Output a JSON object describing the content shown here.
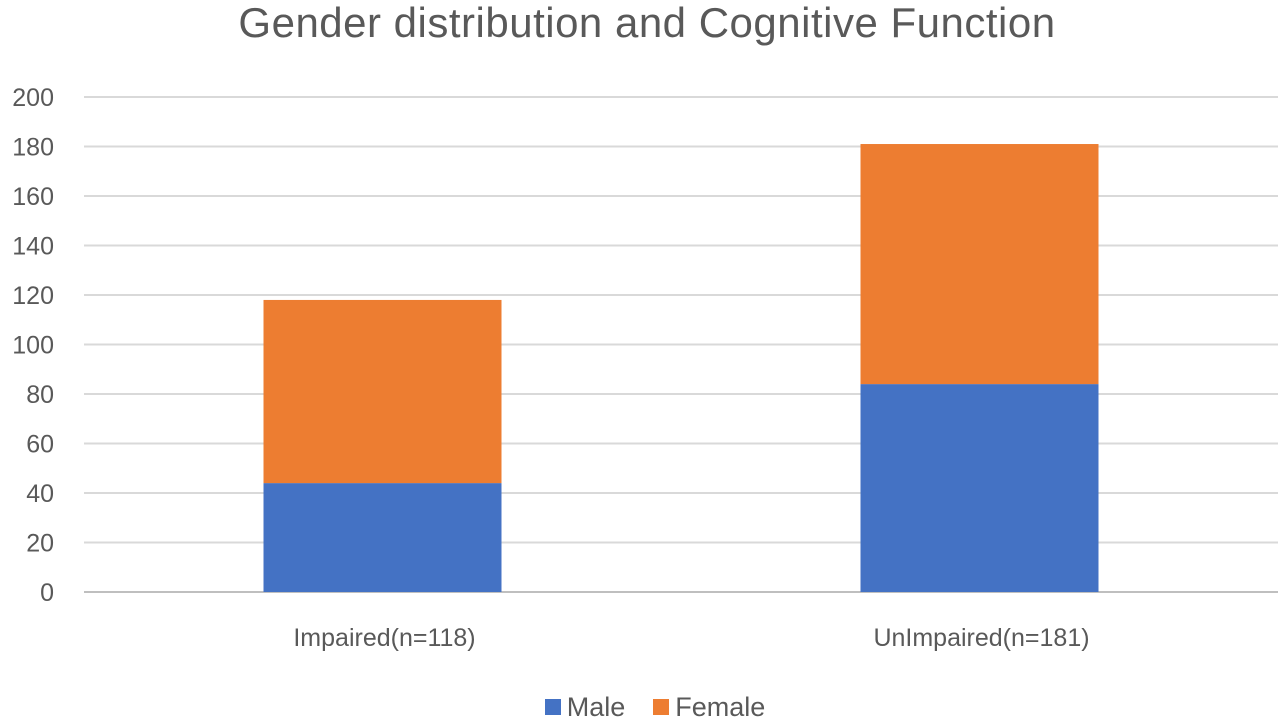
{
  "chart_data": {
    "type": "bar",
    "stacked": true,
    "title": "Gender distribution and Cognitive Function",
    "xlabel": "",
    "ylabel": "",
    "categories": [
      "Impaired(n=118)",
      "UnImpaired(n=181)"
    ],
    "series": [
      {
        "name": "Male",
        "color": "#4472C4",
        "values": [
          44,
          84
        ]
      },
      {
        "name": "Female",
        "color": "#ED7D31",
        "values": [
          74,
          97
        ]
      }
    ],
    "ylim": [
      0,
      200
    ],
    "yticks": [
      "0",
      "20",
      "40",
      "60",
      "80",
      "100",
      "120",
      "140",
      "160",
      "180",
      "200"
    ],
    "grid": true,
    "legend_position": "bottom"
  }
}
